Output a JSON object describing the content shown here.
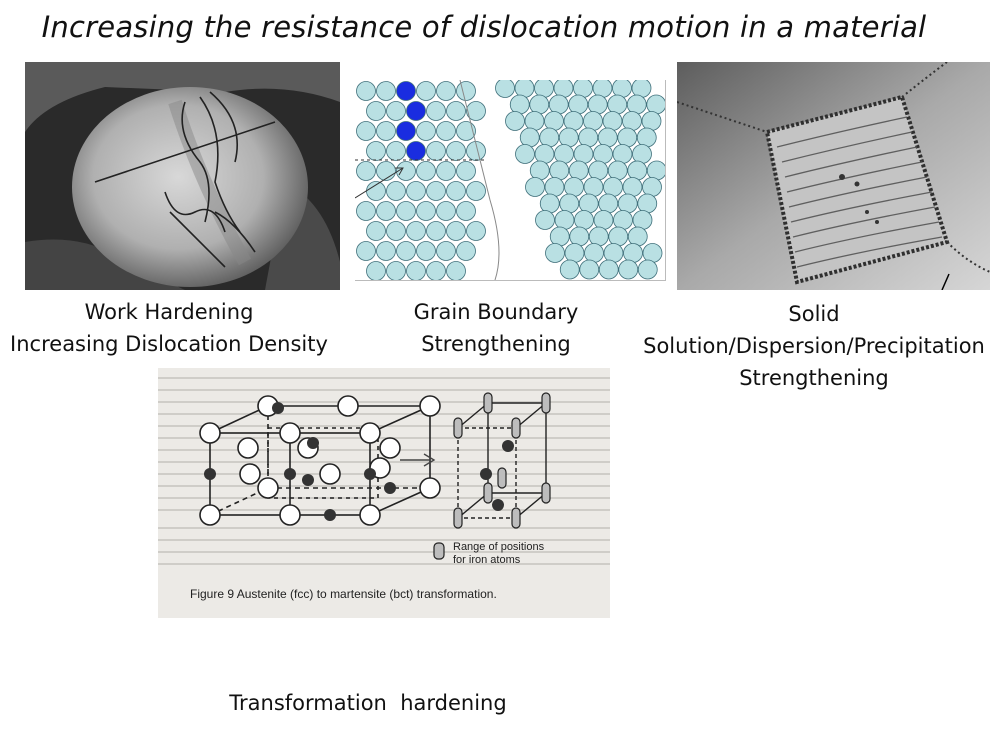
{
  "title": "Increasing the resistance of dislocation motion in a material",
  "captions": {
    "work": [
      "Work Hardening",
      "Increasing Dislocation Density"
    ],
    "grain": [
      "Grain Boundary",
      "Strengthening"
    ],
    "solid": [
      "Solid",
      "Solution/Dispersion/Precipitation",
      "Strengthening"
    ],
    "transform": [
      "Transformation  hardening"
    ]
  },
  "figure": {
    "caption": "Figure 9  Austenite (fcc) to martensite (bct) transformation.",
    "legend": [
      "Range of positions",
      "for iron atoms"
    ]
  }
}
